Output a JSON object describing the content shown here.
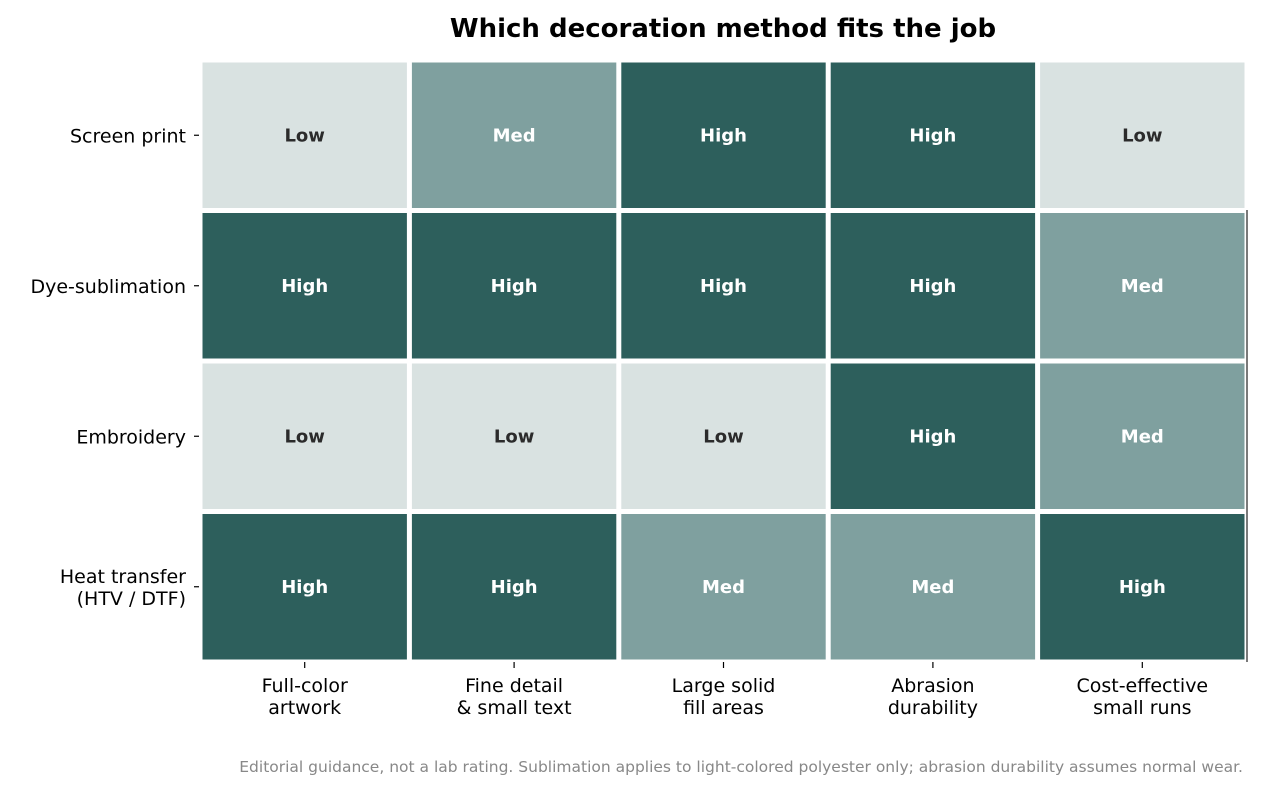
{
  "chart_data": {
    "type": "heatmap",
    "title": "Which decoration method fits the job",
    "rows": [
      [
        "Screen print"
      ],
      [
        "Dye-sublimation"
      ],
      [
        "Embroidery"
      ],
      [
        "Heat transfer",
        "(HTV / DTF)"
      ]
    ],
    "columns": [
      [
        "Full-color",
        "artwork"
      ],
      [
        "Fine detail",
        "& small text"
      ],
      [
        "Large solid",
        "fill areas"
      ],
      [
        "Abrasion",
        "durability"
      ],
      [
        "Cost-effective",
        "small runs"
      ]
    ],
    "values": [
      [
        "Low",
        "Med",
        "High",
        "High",
        "Low"
      ],
      [
        "High",
        "High",
        "High",
        "High",
        "Med"
      ],
      [
        "Low",
        "Low",
        "Low",
        "High",
        "Med"
      ],
      [
        "High",
        "High",
        "Med",
        "Med",
        "High"
      ]
    ],
    "scale": {
      "Low": {
        "fill": "#d9e2e1",
        "text": "#2b2b2b"
      },
      "Med": {
        "fill": "#7fa09f",
        "text": "#ffffff"
      },
      "High": {
        "fill": "#2d5f5c",
        "text": "#ffffff"
      }
    },
    "footnote": "Editorial guidance, not a lab rating. Sublimation applies to light-colored polyester only; abrasion durability assumes normal wear."
  }
}
